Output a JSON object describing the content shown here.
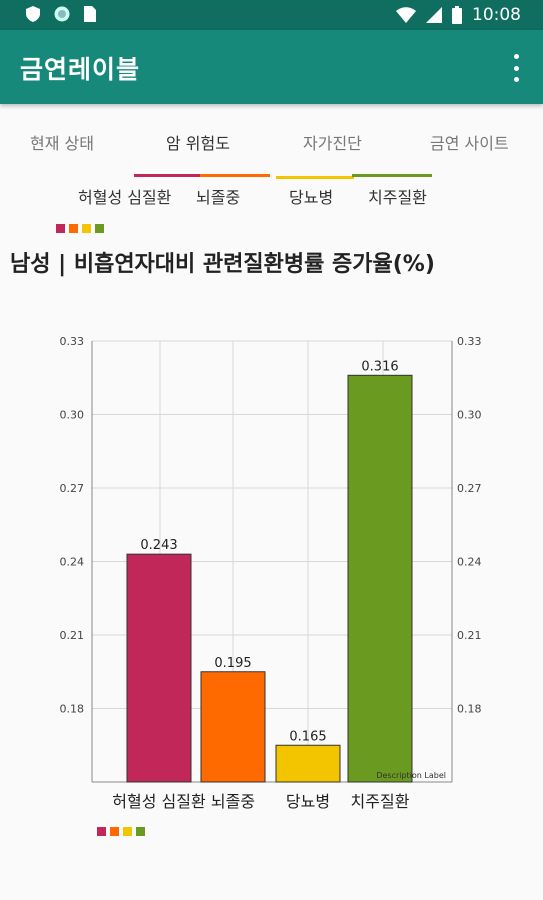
{
  "status_bar": {
    "time": "10:08",
    "icons": [
      "shield-icon",
      "globe-icon",
      "sim-icon",
      "wifi-icon",
      "signal-icon",
      "battery-icon"
    ]
  },
  "app_bar": {
    "title": "금연레이블",
    "menu_icon": "more-vert-icon"
  },
  "tabs": [
    {
      "label": "현재 상태"
    },
    {
      "label": "암 위험도"
    },
    {
      "label": "자가진단"
    },
    {
      "label": "금연 사이트"
    }
  ],
  "previous_chart": {
    "labels": [
      "허혈성 심질환",
      "뇌졸중",
      "당뇨병",
      "치주질환"
    ]
  },
  "chart_data": {
    "type": "bar",
    "title": "남성 | 비흡연자대비 관련질환병률 증가율(%)",
    "categories": [
      "허혈성 심질환",
      "뇌졸중",
      "당뇨병",
      "치주질환"
    ],
    "values": [
      0.243,
      0.195,
      0.165,
      0.316
    ],
    "value_labels": [
      "0.243",
      "0.195",
      "0.165",
      "0.316"
    ],
    "colors": [
      "#c2275a",
      "#ff6a00",
      "#f2c500",
      "#6a9a1f"
    ],
    "ylim": [
      0.15,
      0.33
    ],
    "y_ticks": [
      0.18,
      0.21,
      0.24,
      0.27,
      0.3,
      0.33
    ],
    "y_tick_labels": [
      "0.18",
      "0.21",
      "0.24",
      "0.27",
      "0.30",
      "0.33"
    ],
    "grid": true,
    "description": "Description Label",
    "legend_colors": [
      "#c2275a",
      "#ff6a00",
      "#f2c500",
      "#6a9a1f"
    ]
  }
}
